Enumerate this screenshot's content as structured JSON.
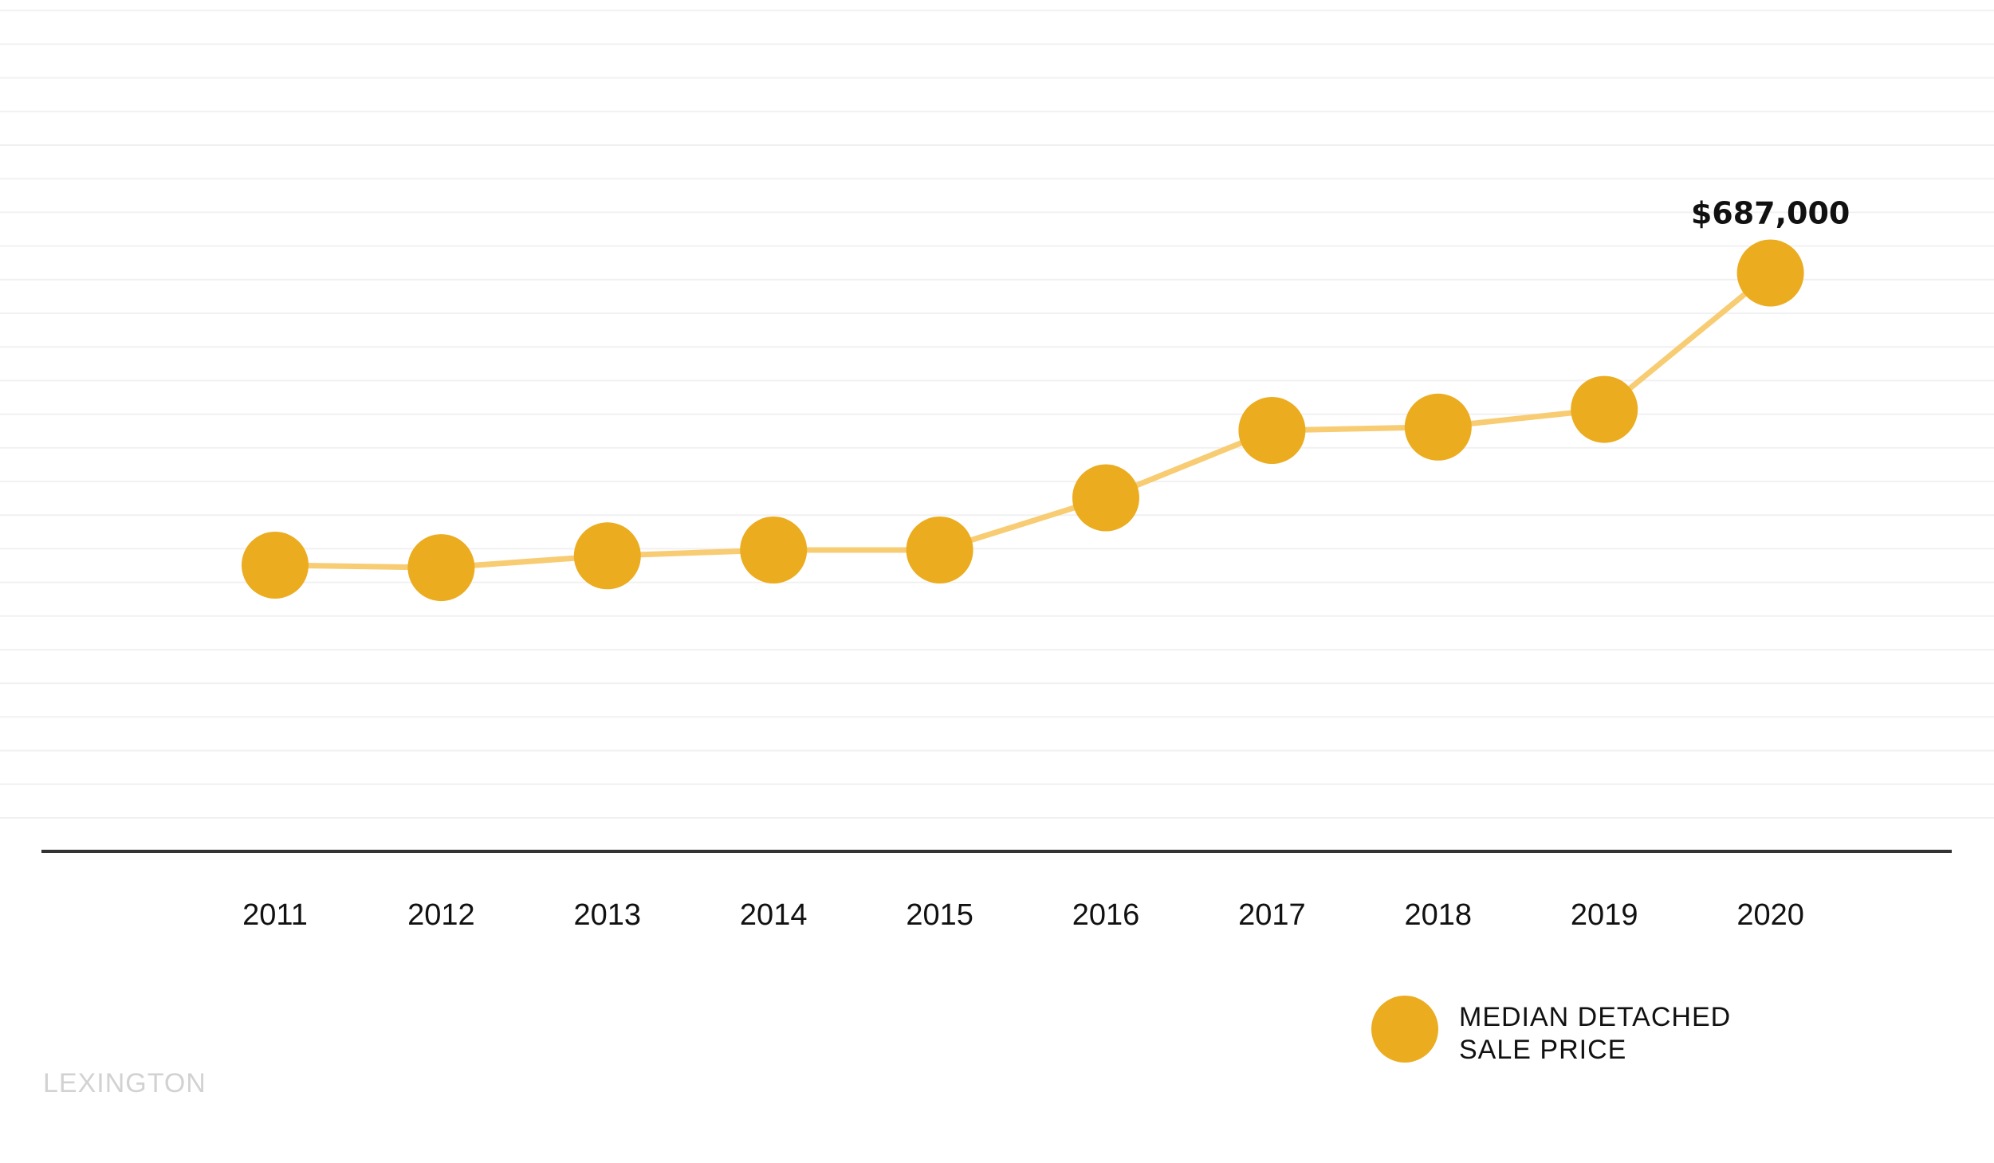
{
  "chart_data": {
    "type": "line",
    "categories": [
      "2011",
      "2012",
      "2013",
      "2014",
      "2015",
      "2016",
      "2017",
      "2018",
      "2019",
      "2020"
    ],
    "series": [
      {
        "name": "MEDIAN DETACHED SALE PRICE",
        "values": [
          340000,
          337000,
          351000,
          358000,
          358000,
          420000,
          500000,
          504000,
          525000,
          687000
        ]
      }
    ],
    "ylim": [
      0,
      1000000
    ],
    "grid": true,
    "legend_position": "bottom-right",
    "annotations": [
      {
        "category": "2020",
        "text": "$687,000"
      }
    ],
    "colors": {
      "marker": "#EBAC20",
      "line": "#F8CC72",
      "grid": "#F1F1F1",
      "axis": "#333333"
    }
  },
  "legend": {
    "line1": "MEDIAN DETACHED",
    "line2": "SALE PRICE"
  },
  "watermark": "LEXINGTON"
}
